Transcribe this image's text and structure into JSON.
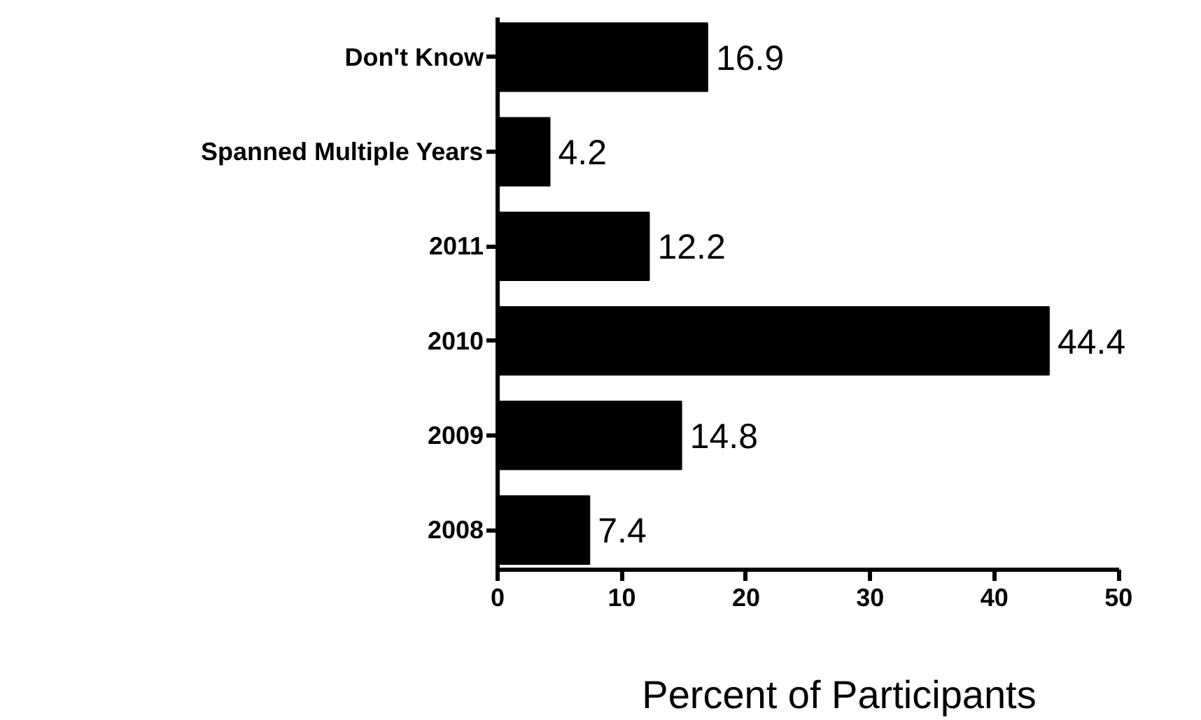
{
  "chart_data": {
    "type": "bar",
    "orientation": "horizontal",
    "xlabel": "Percent of Participants",
    "categories": [
      "Don't Know",
      "Spanned Multiple Years",
      "2011",
      "2010",
      "2009",
      "2008"
    ],
    "values": [
      16.9,
      4.2,
      12.2,
      44.4,
      14.8,
      7.4
    ],
    "color": "#000000",
    "xlim": [
      0,
      50
    ],
    "xticks": [
      0,
      10,
      20,
      30,
      40,
      50
    ],
    "data_labels": true,
    "grid": false
  }
}
